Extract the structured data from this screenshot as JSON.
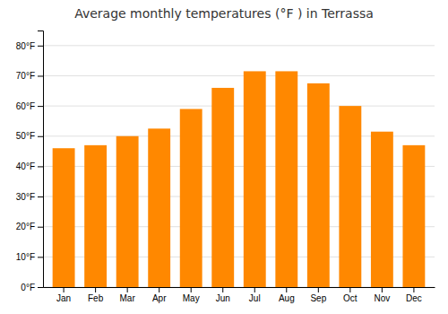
{
  "chart_data": {
    "type": "bar",
    "title": "Average monthly temperatures (°F ) in Terrassa",
    "categories": [
      "Jan",
      "Feb",
      "Mar",
      "Apr",
      "May",
      "Jun",
      "Jul",
      "Aug",
      "Sep",
      "Oct",
      "Nov",
      "Dec"
    ],
    "values": [
      46,
      47,
      50,
      52.5,
      59,
      66,
      71.5,
      71.5,
      67.5,
      60,
      51.5,
      47
    ],
    "color": "#FF8800",
    "ylim": [
      0,
      85
    ],
    "yticks": [
      {
        "value": 0,
        "label": "0°F"
      },
      {
        "value": 10,
        "label": "10°F"
      },
      {
        "value": 20,
        "label": "20°F"
      },
      {
        "value": 30,
        "label": "30°F"
      },
      {
        "value": 40,
        "label": "40°F"
      },
      {
        "value": 50,
        "label": "50°F"
      },
      {
        "value": 60,
        "label": "60°F"
      },
      {
        "value": 70,
        "label": "70°F"
      },
      {
        "value": 80,
        "label": "80°F"
      }
    ],
    "grid": true
  }
}
